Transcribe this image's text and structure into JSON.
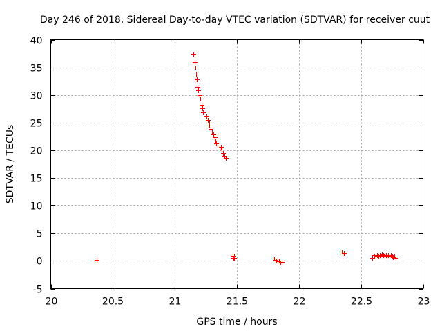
{
  "chart_data": {
    "type": "scatter",
    "title": "Day 246 of 2018, Sidereal Day-to-day VTEC variation (SDTVAR) for receiver cuut",
    "xlabel": "GPS time / hours",
    "ylabel": "SDTVAR / TECUs",
    "xlim": [
      20,
      23
    ],
    "ylim": [
      -5,
      40
    ],
    "xticks": [
      20,
      20.5,
      21,
      21.5,
      22,
      22.5,
      23
    ],
    "xtick_labels": [
      "20",
      "20.5",
      "21",
      "21.5",
      "22",
      "22.5",
      "23"
    ],
    "yticks": [
      -5,
      0,
      5,
      10,
      15,
      20,
      25,
      30,
      35,
      40
    ],
    "ytick_labels": [
      "-5",
      "0",
      "5",
      "10",
      "15",
      "20",
      "25",
      "30",
      "35",
      "40"
    ],
    "grid": true,
    "marker": "+",
    "series": [
      {
        "name": "SDTVAR",
        "color": "#ff0000",
        "points": [
          [
            20.37,
            0.2
          ],
          [
            21.15,
            37.3
          ],
          [
            21.16,
            36.0
          ],
          [
            21.165,
            35.0
          ],
          [
            21.17,
            33.8
          ],
          [
            21.175,
            32.8
          ],
          [
            21.18,
            31.5
          ],
          [
            21.19,
            30.8
          ],
          [
            21.2,
            30.0
          ],
          [
            21.205,
            29.3
          ],
          [
            21.215,
            28.2
          ],
          [
            21.22,
            27.6
          ],
          [
            21.23,
            26.8
          ],
          [
            21.255,
            26.2
          ],
          [
            21.265,
            25.5
          ],
          [
            21.275,
            25.0
          ],
          [
            21.28,
            24.5
          ],
          [
            21.29,
            23.8
          ],
          [
            21.3,
            23.3
          ],
          [
            21.31,
            22.8
          ],
          [
            21.32,
            22.3
          ],
          [
            21.33,
            21.8
          ],
          [
            21.335,
            21.3
          ],
          [
            21.345,
            20.9
          ],
          [
            21.36,
            20.5
          ],
          [
            21.37,
            20.6
          ],
          [
            21.38,
            20.1
          ],
          [
            21.39,
            19.5
          ],
          [
            21.4,
            19.0
          ],
          [
            21.41,
            18.6
          ],
          [
            21.465,
            0.9
          ],
          [
            21.47,
            0.6
          ],
          [
            21.475,
            0.8
          ],
          [
            21.48,
            0.6
          ],
          [
            21.8,
            0.4
          ],
          [
            21.81,
            0.2
          ],
          [
            21.82,
            0.0
          ],
          [
            21.83,
            -0.1
          ],
          [
            21.84,
            0.1
          ],
          [
            21.85,
            -0.3
          ],
          [
            21.86,
            -0.2
          ],
          [
            22.345,
            1.7
          ],
          [
            22.35,
            1.3
          ],
          [
            22.36,
            1.4
          ],
          [
            22.59,
            0.6
          ],
          [
            22.6,
            1.0
          ],
          [
            22.61,
            0.8
          ],
          [
            22.62,
            0.9
          ],
          [
            22.63,
            1.0
          ],
          [
            22.64,
            0.8
          ],
          [
            22.65,
            1.1
          ],
          [
            22.66,
            0.9
          ],
          [
            22.67,
            1.2
          ],
          [
            22.68,
            1.0
          ],
          [
            22.69,
            0.9
          ],
          [
            22.7,
            1.1
          ],
          [
            22.71,
            0.8
          ],
          [
            22.72,
            1.0
          ],
          [
            22.73,
            0.9
          ],
          [
            22.74,
            1.1
          ],
          [
            22.75,
            0.8
          ],
          [
            22.76,
            0.7
          ],
          [
            22.77,
            0.8
          ],
          [
            22.78,
            0.6
          ]
        ]
      }
    ]
  }
}
